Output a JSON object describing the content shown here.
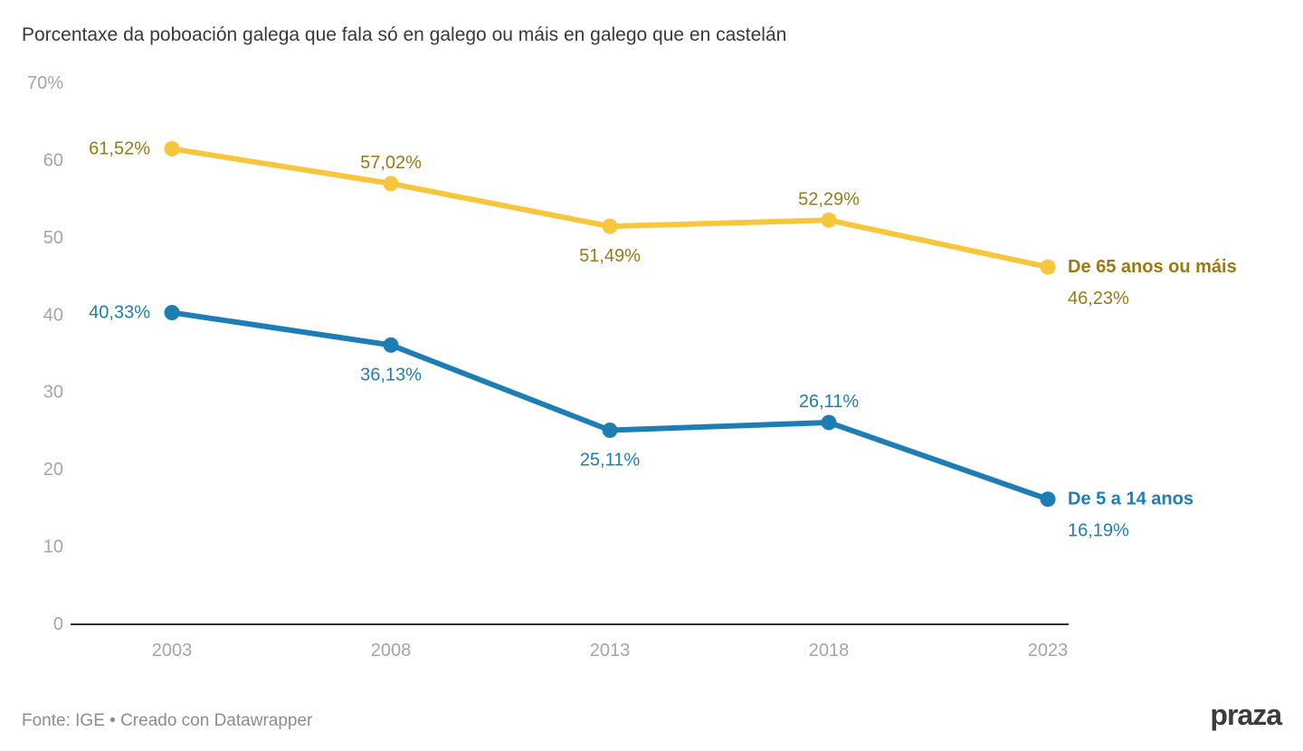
{
  "title": "Porcentaxe da poboación galega que fala só en galego ou máis en galego que en castelán",
  "footer": {
    "source": "Fonte: IGE • Creado con Datawrapper",
    "brand": "praza"
  },
  "colors": {
    "background": "#ffffff",
    "title_text": "#393939",
    "axis_line": "#2e2e2e",
    "tick_text": "#a5a5a5",
    "footer_text": "#8c8c8c",
    "brand_text": "#3c3c3c",
    "series_yellow_line": "#F8C63C",
    "series_yellow_label": "#9C7910",
    "series_blue_line": "#1D7EB5",
    "series_blue_label": "#1D7EB5"
  },
  "chart_data": {
    "type": "line",
    "x": [
      2003,
      2008,
      2013,
      2018,
      2023
    ],
    "x_labels": [
      "2003",
      "2008",
      "2013",
      "2018",
      "2023"
    ],
    "series": [
      {
        "name": "De 65 anos ou máis",
        "values": [
          61.52,
          57.02,
          51.49,
          52.29,
          46.23
        ],
        "value_labels": [
          "61,52%",
          "57,02%",
          "51,49%",
          "52,29%",
          "46,23%"
        ],
        "label_positions": [
          "left",
          "above",
          "below",
          "above",
          "end"
        ],
        "line_color": "#F8C63C",
        "label_color": "#9C7910"
      },
      {
        "name": "De 5 a 14 anos",
        "values": [
          40.33,
          36.13,
          25.11,
          26.11,
          16.19
        ],
        "value_labels": [
          "40,33%",
          "36,13%",
          "25,11%",
          "26,11%",
          "16,19%"
        ],
        "label_positions": [
          "left",
          "below",
          "below",
          "above",
          "end"
        ],
        "line_color": "#1D7EB5",
        "label_color": "#1D7EB5"
      }
    ],
    "ylim": [
      0,
      70
    ],
    "yticks": [
      70,
      60,
      50,
      40,
      30,
      20,
      10,
      0
    ],
    "ytick_labels": [
      "70%",
      "60",
      "50",
      "40",
      "30",
      "20",
      "10",
      "0"
    ],
    "grid": false,
    "legend_position": "end-of-line"
  }
}
